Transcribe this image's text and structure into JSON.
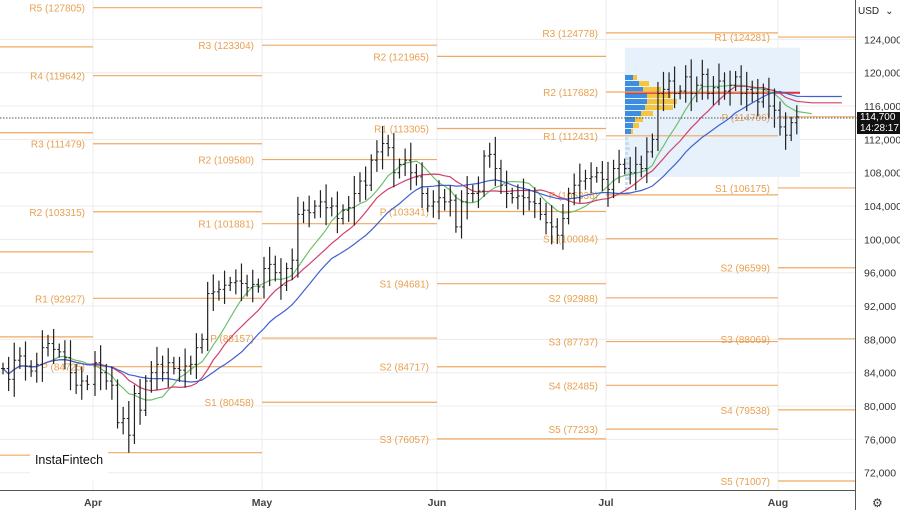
{
  "header": {
    "currency": "USD",
    "currency_dropdown_icon": "chevron-down-icon"
  },
  "current_price": {
    "value": "114,700",
    "countdown": "14:28:17"
  },
  "logo": {
    "text": "InstaFintech"
  },
  "footer": {
    "settings_icon": "gear-icon"
  },
  "colors": {
    "pivot": "#f0a860",
    "sma_fast": "#6fbf6f",
    "sma_mid": "#d0406a",
    "sma_slow": "#4060d0",
    "profile_blue": "#3d8ee0",
    "profile_yellow": "#f5c542",
    "poc": "#e03030",
    "profile_bg": "#e6f1fb"
  },
  "chart_data": {
    "type": "ohlc-bar",
    "title": "",
    "ylabel": "",
    "ylim": [
      70000,
      128000
    ],
    "yticks": [
      "124,000",
      "120,000",
      "116,000",
      "112,000",
      "108,000",
      "104,000",
      "100,000",
      "96,000",
      "92,000",
      "88,000",
      "84,000",
      "80,000",
      "76,000",
      "72,000"
    ],
    "ytick_values": [
      124000,
      120000,
      116000,
      112000,
      108000,
      104000,
      100000,
      96000,
      92000,
      88000,
      84000,
      80000,
      76000,
      72000
    ],
    "months": [
      "Apr",
      "May",
      "Jun",
      "Jul",
      "Aug"
    ],
    "grid": true,
    "closes": {
      "Mar": [
        84500,
        83200,
        85500,
        86000,
        84800,
        84200,
        85000,
        87000,
        87500,
        86800,
        86500,
        85800,
        84000,
        82500,
        83000,
        82600
      ],
      "Apr": [
        85200,
        84000,
        83000,
        82500,
        78000,
        78500,
        76500,
        81500,
        79500,
        83000,
        84000,
        85000,
        84000,
        85200,
        84500,
        84300,
        84800,
        85000,
        87000,
        88000,
        93500,
        93700,
        94000,
        94500,
        94800,
        95000,
        94700,
        94200,
        94600,
        94300
      ],
      "May": [
        96500,
        97000,
        96000,
        94500,
        96500,
        97500,
        103000,
        103500,
        103200,
        104000,
        104500,
        103800,
        104000,
        102500,
        103500,
        103800,
        105500,
        107000,
        106500,
        109500,
        110500,
        111500,
        111000,
        108000,
        109000,
        109500,
        108000,
        107500,
        105500,
        104000,
        104500
      ],
      "Jun": [
        105000,
        104500,
        104700,
        101500,
        104500,
        105500,
        105500,
        105800,
        110000,
        110200,
        108500,
        106500,
        105500,
        105000,
        105200,
        105000,
        104500,
        104300,
        103000,
        102000,
        101500,
        100500,
        102500,
        105500,
        106500,
        107000,
        107300,
        107500,
        108000,
        107200
      ],
      "Jul": [
        106000,
        108500,
        109000,
        108500,
        108000,
        109000,
        108500,
        110500,
        112000,
        117500,
        118000,
        119000,
        117500,
        117800,
        119500,
        117500,
        118500,
        119800,
        117500,
        118200,
        119000,
        117800,
        118500,
        119500,
        117500,
        118000,
        117500,
        116500,
        118000,
        116000,
        115500
      ],
      "Aug": [
        113500,
        112500,
        114000,
        114700
      ]
    },
    "moving_averages": [
      {
        "color": "#6fbf6f"
      },
      {
        "color": "#d0406a"
      },
      {
        "color": "#4060d0"
      }
    ],
    "pivot_sets": [
      {
        "period": "Mar",
        "levels": [
          {
            "label": "",
            "value": 123100
          },
          {
            "label": "",
            "value": 112800
          },
          {
            "label": "",
            "value": 98500
          },
          {
            "label": "",
            "value": 88300
          },
          {
            "label": "",
            "value": 74100
          }
        ]
      },
      {
        "period": "Apr",
        "levels": [
          {
            "label": "R5 (127805)",
            "value": 127805
          },
          {
            "label": "R4 (119642)",
            "value": 119642
          },
          {
            "label": "R3 (111479)",
            "value": 111479
          },
          {
            "label": "R2 (103315)",
            "value": 103315
          },
          {
            "label": "R1 (92927)",
            "value": 92927
          },
          {
            "label": "P (84725)",
            "value": 84725
          },
          {
            "label": "",
            "value": 74400
          }
        ]
      },
      {
        "period": "May",
        "levels": [
          {
            "label": "R3 (123304)",
            "value": 123304
          },
          {
            "label": "R2 (109580)",
            "value": 109580
          },
          {
            "label": "R1 (101881)",
            "value": 101881
          },
          {
            "label": "P (88157)",
            "value": 88157
          },
          {
            "label": "S1 (80458)",
            "value": 80458
          }
        ]
      },
      {
        "period": "Jun",
        "levels": [
          {
            "label": "R2 (121965)",
            "value": 121965
          },
          {
            "label": "R1 (113305)",
            "value": 113305
          },
          {
            "label": "P (103341)",
            "value": 103341
          },
          {
            "label": "S1 (94681)",
            "value": 94681
          },
          {
            "label": "S2 (84717)",
            "value": 84717
          },
          {
            "label": "S3 (76057)",
            "value": 76057
          }
        ]
      },
      {
        "period": "Jul",
        "levels": [
          {
            "label": "R3 (124778)",
            "value": 124778
          },
          {
            "label": "R2 (117682)",
            "value": 117682
          },
          {
            "label": "R1 (112431)",
            "value": 112431
          },
          {
            "label": "P (105336)",
            "value": 105336
          },
          {
            "label": "S1 (100084)",
            "value": 100084
          },
          {
            "label": "S2 (92988)",
            "value": 92988
          },
          {
            "label": "S3 (87737)",
            "value": 87737
          },
          {
            "label": "S4 (82485)",
            "value": 82485
          },
          {
            "label": "S5 (77233)",
            "value": 77233
          }
        ]
      },
      {
        "period": "Aug",
        "levels": [
          {
            "label": "R1 (124281)",
            "value": 124281
          },
          {
            "label": "P (114706)",
            "value": 114706
          },
          {
            "label": "S1 (106175)",
            "value": 106175
          },
          {
            "label": "S2 (96599)",
            "value": 96599
          },
          {
            "label": "S3 (88069)",
            "value": 88069
          },
          {
            "label": "S4 (79538)",
            "value": 79538
          },
          {
            "label": "S5 (71007)",
            "value": 71007
          }
        ]
      }
    ],
    "volume_profile": {
      "poc": 117600,
      "range": [
        107500,
        123000
      ]
    }
  }
}
